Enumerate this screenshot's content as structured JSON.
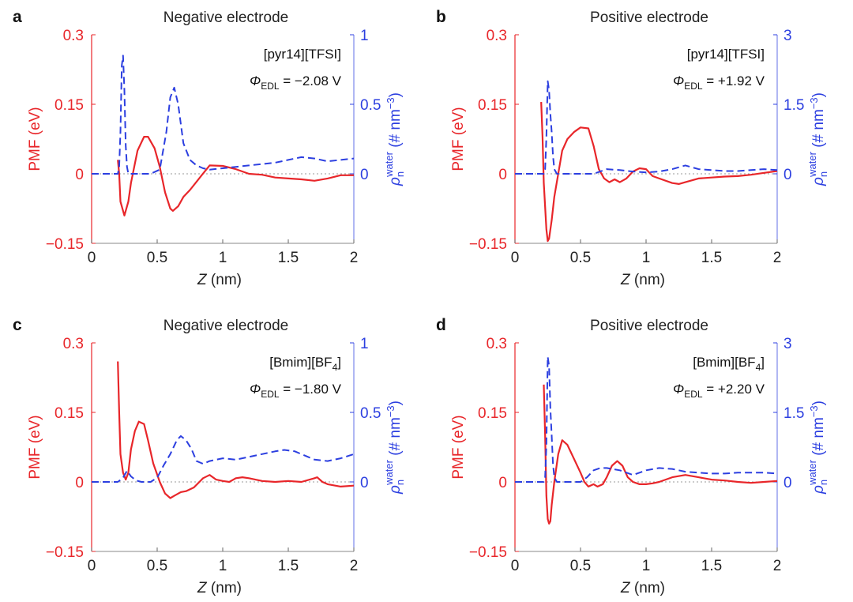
{
  "chart_data": [
    {
      "panel": "a",
      "type": "line",
      "title": "Negative electrode",
      "electrolyte_main": "[pyr14][TFSI]",
      "electrolyte_sub": "",
      "electrolyte_tail": "",
      "phi_value": "= −2.08 V",
      "xlabel_var": "Z",
      "xlabel_unit": " (nm)",
      "ylabel_left": "PMF (eV)",
      "xlim": [
        0,
        2
      ],
      "ylim_left": [
        -0.15,
        0.3
      ],
      "ylim_right": [
        -0.5,
        1
      ],
      "xticks": [
        "0",
        "0.5",
        "1",
        "1.5",
        "2"
      ],
      "yticks_left": [
        "0.3",
        "0.15",
        "0",
        "−0.15"
      ],
      "yticks_left_values": [
        0.3,
        0.15,
        0,
        -0.15
      ],
      "yticks_right": [
        "1",
        "0.5",
        "0"
      ],
      "yticks_right_values": [
        1,
        0.5,
        0
      ],
      "series": [
        {
          "name": "PMF",
          "axis": "left",
          "style": "solid",
          "color": "#e8262a",
          "x": [
            0.2,
            0.21,
            0.22,
            0.25,
            0.28,
            0.3,
            0.35,
            0.4,
            0.43,
            0.48,
            0.52,
            0.56,
            0.6,
            0.62,
            0.66,
            0.7,
            0.75,
            0.82,
            0.9,
            1.0,
            1.1,
            1.2,
            1.3,
            1.4,
            1.5,
            1.6,
            1.7,
            1.8,
            1.9,
            2.0
          ],
          "y": [
            0.03,
            0.0,
            -0.06,
            -0.09,
            -0.06,
            -0.02,
            0.05,
            0.08,
            0.08,
            0.055,
            0.015,
            -0.04,
            -0.075,
            -0.08,
            -0.07,
            -0.05,
            -0.035,
            -0.01,
            0.018,
            0.017,
            0.01,
            0.0,
            -0.002,
            -0.008,
            -0.01,
            -0.012,
            -0.015,
            -0.01,
            -0.003,
            -0.003
          ]
        },
        {
          "name": "water density",
          "axis": "right",
          "style": "dashed",
          "color": "#2c3fe0",
          "x": [
            0.0,
            0.2,
            0.21,
            0.22,
            0.23,
            0.24,
            0.25,
            0.26,
            0.27,
            0.28,
            0.3,
            0.45,
            0.52,
            0.57,
            0.6,
            0.63,
            0.66,
            0.7,
            0.75,
            0.8,
            0.85,
            0.9,
            1.0,
            1.1,
            1.2,
            1.3,
            1.4,
            1.5,
            1.6,
            1.7,
            1.8,
            1.9,
            2.0
          ],
          "y": [
            0.0,
            0.0,
            0.05,
            0.3,
            0.78,
            0.85,
            0.6,
            0.2,
            0.05,
            0.0,
            0.0,
            0.0,
            0.03,
            0.3,
            0.55,
            0.62,
            0.5,
            0.22,
            0.1,
            0.06,
            0.04,
            0.03,
            0.04,
            0.05,
            0.06,
            0.07,
            0.08,
            0.1,
            0.12,
            0.11,
            0.09,
            0.1,
            0.11
          ]
        }
      ]
    },
    {
      "panel": "b",
      "type": "line",
      "title": "Positive electrode",
      "electrolyte_main": "[pyr14][TFSI]",
      "electrolyte_sub": "",
      "electrolyte_tail": "",
      "phi_value": "= +1.92 V",
      "xlabel_var": "Z",
      "xlabel_unit": " (nm)",
      "ylabel_left": "PMF (eV)",
      "xlim": [
        0,
        2
      ],
      "ylim_left": [
        -0.15,
        0.3
      ],
      "ylim_right": [
        -1.5,
        3
      ],
      "xticks": [
        "0",
        "0.5",
        "1",
        "1.5",
        "2"
      ],
      "yticks_left": [
        "0.3",
        "0.15",
        "0",
        "−0.15"
      ],
      "yticks_left_values": [
        0.3,
        0.15,
        0,
        -0.15
      ],
      "yticks_right": [
        "3",
        "1.5",
        "0"
      ],
      "yticks_right_values": [
        3,
        1.5,
        0
      ],
      "series": [
        {
          "name": "PMF",
          "axis": "left",
          "style": "solid",
          "color": "#e8262a",
          "x": [
            0.2,
            0.21,
            0.22,
            0.24,
            0.25,
            0.26,
            0.28,
            0.3,
            0.33,
            0.36,
            0.4,
            0.45,
            0.5,
            0.56,
            0.6,
            0.64,
            0.68,
            0.72,
            0.76,
            0.8,
            0.85,
            0.9,
            0.95,
            1.0,
            1.05,
            1.1,
            1.2,
            1.25,
            1.3,
            1.4,
            1.5,
            1.6,
            1.7,
            1.8,
            1.9,
            2.0
          ],
          "y": [
            0.155,
            0.08,
            -0.02,
            -0.12,
            -0.145,
            -0.14,
            -0.1,
            -0.05,
            0.0,
            0.05,
            0.075,
            0.09,
            0.1,
            0.098,
            0.06,
            0.01,
            -0.01,
            -0.018,
            -0.012,
            -0.018,
            -0.01,
            0.005,
            0.012,
            0.01,
            -0.005,
            -0.01,
            -0.02,
            -0.022,
            -0.018,
            -0.01,
            -0.008,
            -0.006,
            -0.005,
            -0.002,
            0.002,
            0.006
          ]
        },
        {
          "name": "water density",
          "axis": "right",
          "style": "dashed",
          "color": "#2c3fe0",
          "x": [
            0.0,
            0.22,
            0.23,
            0.24,
            0.25,
            0.26,
            0.27,
            0.28,
            0.29,
            0.3,
            0.32,
            0.6,
            0.65,
            0.7,
            0.8,
            0.9,
            1.0,
            1.1,
            1.2,
            1.3,
            1.4,
            1.5,
            1.6,
            1.7,
            1.8,
            1.9,
            2.0
          ],
          "y": [
            0.0,
            0.0,
            0.1,
            0.8,
            2.0,
            1.8,
            1.3,
            0.9,
            0.4,
            0.1,
            0.0,
            0.0,
            0.05,
            0.1,
            0.08,
            0.05,
            0.03,
            0.05,
            0.1,
            0.18,
            0.1,
            0.08,
            0.06,
            0.06,
            0.08,
            0.1,
            0.08
          ]
        }
      ]
    },
    {
      "panel": "c",
      "type": "line",
      "title": "Negative electrode",
      "electrolyte_main": "[Bmim][BF",
      "electrolyte_sub": "4",
      "electrolyte_tail": "]",
      "phi_value": "= −1.80 V",
      "xlabel_var": "Z",
      "xlabel_unit": " (nm)",
      "ylabel_left": "PMF (eV)",
      "xlim": [
        0,
        2
      ],
      "ylim_left": [
        -0.15,
        0.3
      ],
      "ylim_right": [
        -0.5,
        1
      ],
      "xticks": [
        "0",
        "0.5",
        "1",
        "1.5",
        "2"
      ],
      "yticks_left": [
        "0.3",
        "0.15",
        "0",
        "−0.15"
      ],
      "yticks_left_values": [
        0.3,
        0.15,
        0,
        -0.15
      ],
      "yticks_right": [
        "1",
        "0.5",
        "0"
      ],
      "yticks_right_values": [
        1,
        0.5,
        0
      ],
      "series": [
        {
          "name": "PMF",
          "axis": "left",
          "style": "solid",
          "color": "#e8262a",
          "x": [
            0.2,
            0.21,
            0.22,
            0.24,
            0.26,
            0.28,
            0.3,
            0.33,
            0.36,
            0.4,
            0.43,
            0.47,
            0.52,
            0.56,
            0.6,
            0.63,
            0.68,
            0.72,
            0.78,
            0.85,
            0.9,
            0.95,
            1.0,
            1.05,
            1.1,
            1.15,
            1.2,
            1.3,
            1.4,
            1.5,
            1.6,
            1.7,
            1.72,
            1.76,
            1.8,
            1.9,
            2.0
          ],
          "y": [
            0.26,
            0.15,
            0.06,
            0.02,
            0.005,
            0.02,
            0.07,
            0.11,
            0.13,
            0.125,
            0.09,
            0.04,
            0.0,
            -0.025,
            -0.035,
            -0.03,
            -0.022,
            -0.02,
            -0.012,
            0.008,
            0.015,
            0.005,
            0.002,
            0.0,
            0.008,
            0.01,
            0.008,
            0.002,
            0.0,
            0.002,
            0.0,
            0.008,
            0.01,
            0.0,
            -0.005,
            -0.01,
            -0.008
          ]
        },
        {
          "name": "water density",
          "axis": "right",
          "style": "dashed",
          "color": "#2c3fe0",
          "x": [
            0.0,
            0.2,
            0.24,
            0.27,
            0.3,
            0.34,
            0.38,
            0.45,
            0.5,
            0.55,
            0.6,
            0.65,
            0.68,
            0.72,
            0.76,
            0.8,
            0.85,
            0.9,
            1.0,
            1.1,
            1.2,
            1.3,
            1.4,
            1.47,
            1.55,
            1.6,
            1.7,
            1.8,
            1.9,
            2.0
          ],
          "y": [
            0.0,
            0.0,
            0.03,
            0.08,
            0.04,
            0.01,
            0.0,
            0.0,
            0.03,
            0.12,
            0.2,
            0.3,
            0.33,
            0.3,
            0.24,
            0.15,
            0.13,
            0.15,
            0.17,
            0.16,
            0.18,
            0.2,
            0.22,
            0.23,
            0.22,
            0.2,
            0.16,
            0.15,
            0.17,
            0.2
          ]
        }
      ]
    },
    {
      "panel": "d",
      "type": "line",
      "title": "Positive electrode",
      "electrolyte_main": "[Bmim][BF",
      "electrolyte_sub": "4",
      "electrolyte_tail": "]",
      "phi_value": "= +2.20 V",
      "xlabel_var": "Z",
      "xlabel_unit": " (nm)",
      "ylabel_left": "PMF (eV)",
      "xlim": [
        0,
        2
      ],
      "ylim_left": [
        -0.15,
        0.3
      ],
      "ylim_right": [
        -1.5,
        3
      ],
      "xticks": [
        "0",
        "0.5",
        "1",
        "1.5",
        "2"
      ],
      "yticks_left": [
        "0.3",
        "0.15",
        "0",
        "−0.15"
      ],
      "yticks_left_values": [
        0.3,
        0.15,
        0,
        -0.15
      ],
      "yticks_right": [
        "3",
        "1.5",
        "0"
      ],
      "yticks_right_values": [
        3,
        1.5,
        0
      ],
      "series": [
        {
          "name": "PMF",
          "axis": "left",
          "style": "solid",
          "color": "#e8262a",
          "x": [
            0.22,
            0.23,
            0.24,
            0.25,
            0.26,
            0.27,
            0.28,
            0.3,
            0.33,
            0.36,
            0.4,
            0.45,
            0.5,
            0.53,
            0.56,
            0.6,
            0.63,
            0.67,
            0.7,
            0.74,
            0.78,
            0.82,
            0.86,
            0.9,
            0.95,
            1.0,
            1.05,
            1.1,
            1.2,
            1.3,
            1.4,
            1.5,
            1.6,
            1.7,
            1.8,
            1.9,
            2.0
          ],
          "y": [
            0.21,
            0.1,
            -0.03,
            -0.08,
            -0.09,
            -0.085,
            -0.05,
            0.0,
            0.06,
            0.09,
            0.08,
            0.05,
            0.02,
            0.0,
            -0.01,
            -0.005,
            -0.01,
            -0.005,
            0.01,
            0.035,
            0.045,
            0.035,
            0.01,
            0.0,
            -0.005,
            -0.005,
            -0.003,
            0.0,
            0.01,
            0.015,
            0.01,
            0.005,
            0.003,
            0.0,
            -0.002,
            0.0,
            0.002
          ]
        },
        {
          "name": "water density",
          "axis": "right",
          "style": "dashed",
          "color": "#2c3fe0",
          "x": [
            0.0,
            0.22,
            0.23,
            0.24,
            0.25,
            0.26,
            0.27,
            0.28,
            0.29,
            0.3,
            0.32,
            0.5,
            0.55,
            0.6,
            0.65,
            0.7,
            0.8,
            0.9,
            1.0,
            1.1,
            1.2,
            1.3,
            1.4,
            1.5,
            1.6,
            1.7,
            1.8,
            1.9,
            2.0
          ],
          "y": [
            0.0,
            0.0,
            0.1,
            0.8,
            2.7,
            2.5,
            1.6,
            1.0,
            0.4,
            0.1,
            0.0,
            0.0,
            0.1,
            0.25,
            0.3,
            0.3,
            0.25,
            0.15,
            0.25,
            0.3,
            0.28,
            0.22,
            0.2,
            0.18,
            0.18,
            0.2,
            0.2,
            0.2,
            0.18
          ]
        }
      ]
    }
  ]
}
